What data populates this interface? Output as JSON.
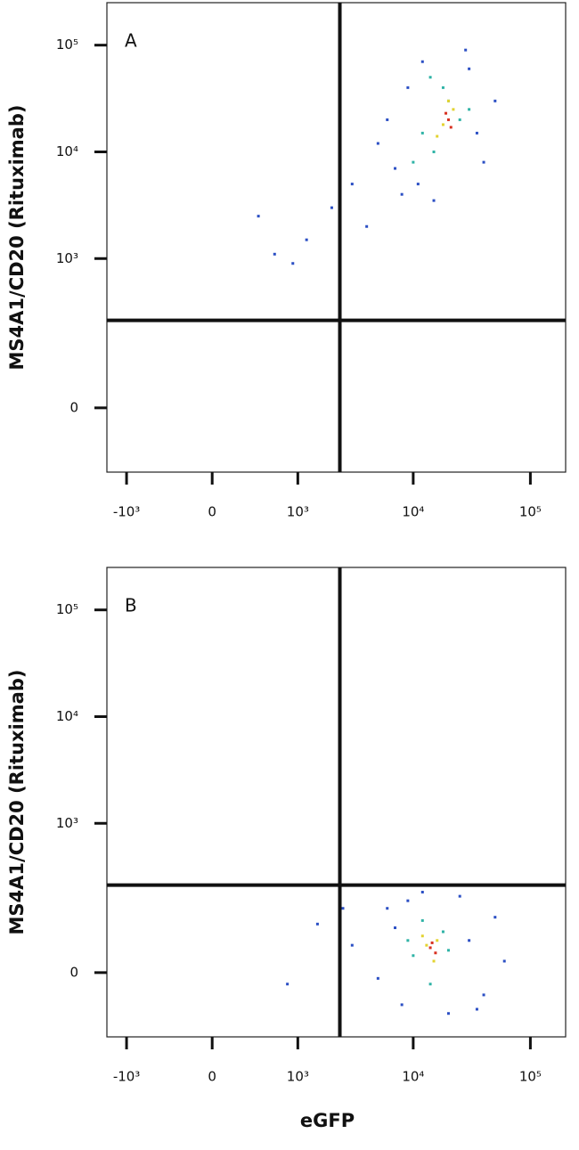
{
  "chart_data": [
    {
      "type": "scatter",
      "label": "A",
      "ylabel": "MS4A1/CD20 (Rituximab)",
      "xscale": "biexponential",
      "yscale": "biexponential",
      "xlim": [
        -1500,
        200000
      ],
      "ylim": [
        -150,
        250000
      ],
      "xticks": [
        {
          "value": -1000,
          "label": "-10³"
        },
        0,
        {
          "value": 1000,
          "label": "10³"
        },
        {
          "value": 10000,
          "label": "10⁴"
        },
        {
          "value": 100000,
          "label": "10⁵"
        }
      ],
      "yticks": [
        0,
        {
          "value": 1000,
          "label": "10³"
        },
        {
          "value": 10000,
          "label": "10⁴"
        },
        {
          "value": 100000,
          "label": "10⁵"
        }
      ],
      "gate": {
        "x": 2350,
        "y": 258
      },
      "series": [
        {
          "color": "#2b4fc4",
          "x": [
            1200,
            3000,
            600,
            8000,
            30000,
            5000,
            40000,
            2000,
            12000,
            900,
            400,
            6000,
            50000,
            15000,
            7000,
            9000,
            35000,
            4000,
            28000,
            11000
          ],
          "y": [
            1500,
            5000,
            1100,
            4000,
            60000,
            12000,
            8000,
            3000,
            70000,
            900,
            2500,
            20000,
            30000,
            3500,
            7000,
            40000,
            15000,
            2000,
            90000,
            5000
          ]
        },
        {
          "color": "#2fb3a6",
          "x": [
            15000,
            20000,
            12000,
            25000,
            18000,
            10000,
            30000,
            14000
          ],
          "y": [
            10000,
            30000,
            15000,
            20000,
            40000,
            8000,
            25000,
            50000
          ]
        },
        {
          "color": "#e3d330",
          "x": [
            18000,
            22000,
            16000,
            20000
          ],
          "y": [
            18000,
            25000,
            14000,
            30000
          ]
        },
        {
          "color": "#d83020",
          "x": [
            20000,
            21000,
            19000
          ],
          "y": [
            20000,
            17000,
            23000
          ]
        }
      ]
    },
    {
      "type": "scatter",
      "label": "B",
      "ylabel": "MS4A1/CD20 (Rituximab)",
      "xlabel": "eGFP",
      "xscale": "biexponential",
      "yscale": "biexponential",
      "xlim": [
        -1500,
        200000
      ],
      "ylim": [
        -150,
        250000
      ],
      "xticks": [
        {
          "value": -1000,
          "label": "-10³"
        },
        0,
        {
          "value": 1000,
          "label": "10³"
        },
        {
          "value": 10000,
          "label": "10⁴"
        },
        {
          "value": 100000,
          "label": "10⁵"
        }
      ],
      "yticks": [
        0,
        {
          "value": 1000,
          "label": "10³"
        },
        {
          "value": 10000,
          "label": "10⁴"
        },
        {
          "value": 100000,
          "label": "10⁵"
        }
      ],
      "gate": {
        "x": 2350,
        "y": 258
      },
      "series": [
        {
          "color": "#2b4fc4",
          "x": [
            3000,
            1500,
            800,
            6000,
            30000,
            40000,
            8000,
            9000,
            25000,
            60000,
            5000,
            20000,
            12000,
            2500,
            50000,
            7000,
            35000
          ],
          "y": [
            50,
            100,
            -20,
            150,
            60,
            -40,
            -60,
            180,
            200,
            20,
            -10,
            -80,
            220,
            150,
            120,
            90,
            -70
          ]
        },
        {
          "color": "#2fb3a6",
          "x": [
            10000,
            18000,
            14000,
            20000,
            12000,
            9000
          ],
          "y": [
            30,
            80,
            -20,
            40,
            110,
            60
          ]
        },
        {
          "color": "#e3d330",
          "x": [
            13000,
            16000,
            15000,
            12000
          ],
          "y": [
            50,
            60,
            20,
            70
          ]
        },
        {
          "color": "#d83020",
          "x": [
            14000,
            15500,
            14500
          ],
          "y": [
            45,
            35,
            55
          ]
        }
      ]
    }
  ]
}
